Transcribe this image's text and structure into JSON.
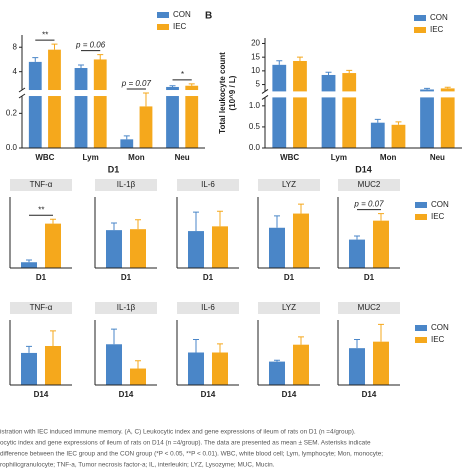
{
  "chart_data": [
    {
      "type": "bar",
      "x_label": "D1",
      "categories": [
        "WBC",
        "Lym",
        "Mon",
        "Neu"
      ],
      "series": [
        {
          "name": "CON",
          "color": "#4a86c8",
          "values": [
            5.6,
            4.6,
            0.05,
            1.5
          ],
          "errors": [
            0.7,
            0.5,
            0.02,
            0.2
          ]
        },
        {
          "name": "IEC",
          "color": "#f5a81c",
          "values": [
            7.6,
            6.0,
            0.24,
            1.7
          ],
          "errors": [
            0.9,
            0.8,
            0.07,
            0.3
          ]
        }
      ],
      "annotations": [
        "**",
        "p = 0.06",
        "p = 0.07",
        "*"
      ],
      "ylim": [
        0,
        10
      ],
      "ybreak": [
        0.3,
        1
      ],
      "yticks": [
        {
          "value": 0,
          "label": "0.0"
        },
        0.2,
        4,
        8
      ],
      "legend": "upper right"
    },
    {
      "type": "bar",
      "panel_label": "B",
      "y_label": [
        "Total leukocyte count",
        "(10^9 / L)"
      ],
      "x_label": "D14",
      "categories": [
        "WBC",
        "Lym",
        "Mon",
        "Neu"
      ],
      "series": [
        {
          "name": "CON",
          "color": "#4a86c8",
          "values": [
            12.2,
            8.5,
            0.6,
            3.2
          ],
          "errors": [
            1.5,
            1.0,
            0.08,
            0.4
          ]
        },
        {
          "name": "IEC",
          "color": "#f5a81c",
          "values": [
            13.6,
            9.2,
            0.55,
            3.6
          ],
          "errors": [
            1.4,
            1.0,
            0.07,
            0.4
          ]
        }
      ],
      "ylim": [
        0,
        22
      ],
      "ybreak": [
        1.2,
        2.5
      ],
      "yticks": [
        {
          "value": 0,
          "label": "0.0"
        },
        {
          "value": 0.5,
          "label": "0.5"
        },
        {
          "value": 1,
          "label": "1.0"
        },
        5,
        10,
        15,
        20
      ],
      "legend": "upper right"
    },
    {
      "type": "bar",
      "title": "TNF-α",
      "categories": [
        "D1"
      ],
      "series": [
        {
          "color": "#4a86c8",
          "values": [
            0.13
          ],
          "errors": [
            0.05
          ]
        },
        {
          "color": "#f5a81c",
          "values": [
            1.0
          ],
          "errors": [
            0.1
          ]
        }
      ],
      "annotations": [
        "**"
      ],
      "ylim": [
        0,
        1.6
      ]
    },
    {
      "type": "bar",
      "title": "IL-1β",
      "categories": [
        "D1"
      ],
      "series": [
        {
          "color": "#4a86c8",
          "values": [
            0.8
          ],
          "errors": [
            0.15
          ]
        },
        {
          "color": "#f5a81c",
          "values": [
            0.82
          ],
          "errors": [
            0.2
          ]
        }
      ],
      "ylim": [
        0,
        1.5
      ]
    },
    {
      "type": "bar",
      "title": "IL-6",
      "categories": [
        "D1"
      ],
      "series": [
        {
          "color": "#4a86c8",
          "values": [
            0.78
          ],
          "errors": [
            0.4
          ]
        },
        {
          "color": "#f5a81c",
          "values": [
            0.88
          ],
          "errors": [
            0.32
          ]
        }
      ],
      "ylim": [
        0,
        1.5
      ]
    },
    {
      "type": "bar",
      "title": "LYZ",
      "categories": [
        "D1"
      ],
      "series": [
        {
          "color": "#4a86c8",
          "values": [
            0.85
          ],
          "errors": [
            0.25
          ]
        },
        {
          "color": "#f5a81c",
          "values": [
            1.15
          ],
          "errors": [
            0.2
          ]
        }
      ],
      "ylim": [
        0,
        1.5
      ]
    },
    {
      "type": "bar",
      "title": "MUC2",
      "categories": [
        "D1"
      ],
      "series": [
        {
          "name": "CON",
          "color": "#4a86c8",
          "values": [
            1.2
          ],
          "errors": [
            0.15
          ]
        },
        {
          "name": "IEC",
          "color": "#f5a81c",
          "values": [
            2.0
          ],
          "errors": [
            0.3
          ]
        }
      ],
      "annotations": [
        "p = 0.07"
      ],
      "ylim": [
        0,
        3
      ],
      "legend": "right"
    },
    {
      "type": "bar",
      "title": "TNF-α",
      "categories": [
        "D14"
      ],
      "series": [
        {
          "color": "#4a86c8",
          "values": [
            0.74
          ],
          "errors": [
            0.15
          ]
        },
        {
          "color": "#f5a81c",
          "values": [
            0.9
          ],
          "errors": [
            0.35
          ]
        }
      ],
      "ylim": [
        0,
        1.5
      ]
    },
    {
      "type": "bar",
      "title": "IL-1β",
      "categories": [
        "D14"
      ],
      "series": [
        {
          "color": "#4a86c8",
          "values": [
            0.94
          ],
          "errors": [
            0.35
          ]
        },
        {
          "color": "#f5a81c",
          "values": [
            0.38
          ],
          "errors": [
            0.18
          ]
        }
      ],
      "ylim": [
        0,
        1.5
      ]
    },
    {
      "type": "bar",
      "title": "IL-6",
      "categories": [
        "D14"
      ],
      "series": [
        {
          "color": "#4a86c8",
          "values": [
            0.75
          ],
          "errors": [
            0.3
          ]
        },
        {
          "color": "#f5a81c",
          "values": [
            0.75
          ],
          "errors": [
            0.2
          ]
        }
      ],
      "ylim": [
        0,
        1.5
      ]
    },
    {
      "type": "bar",
      "title": "LYZ",
      "categories": [
        "D14"
      ],
      "series": [
        {
          "color": "#4a86c8",
          "values": [
            0.36
          ],
          "errors": [
            0.02
          ]
        },
        {
          "color": "#f5a81c",
          "values": [
            0.62
          ],
          "errors": [
            0.12
          ]
        }
      ],
      "ylim": [
        0,
        1
      ]
    },
    {
      "type": "bar",
      "title": "MUC2",
      "categories": [
        "D14"
      ],
      "series": [
        {
          "name": "CON",
          "color": "#4a86c8",
          "values": [
            0.85
          ],
          "errors": [
            0.2
          ]
        },
        {
          "name": "IEC",
          "color": "#f5a81c",
          "values": [
            1.0
          ],
          "errors": [
            0.4
          ]
        }
      ],
      "ylim": [
        0,
        1.5
      ],
      "legend": "right"
    }
  ],
  "caption": [
    "istration with IEC induced immune memory. (A, C) Leukocytic index and gene expressions of ileum of rats on D1 (n =4/group).",
    "ocytic index and gene expressions of ileum of rats on D14 (n =4/group). The data are presented as mean ± SEM. Asterisks indicate",
    " difference between the IEC group and the CON group (*P < 0.05, **P < 0.01). WBC, white blood cell; Lym, lymphocyte; Mon, monocyte;",
    "rophilicgranulocyte; TNF-a, Tumor necrosis factor-a; IL, interleukin; LYZ, Lysozyme; MUC, Mucin."
  ]
}
